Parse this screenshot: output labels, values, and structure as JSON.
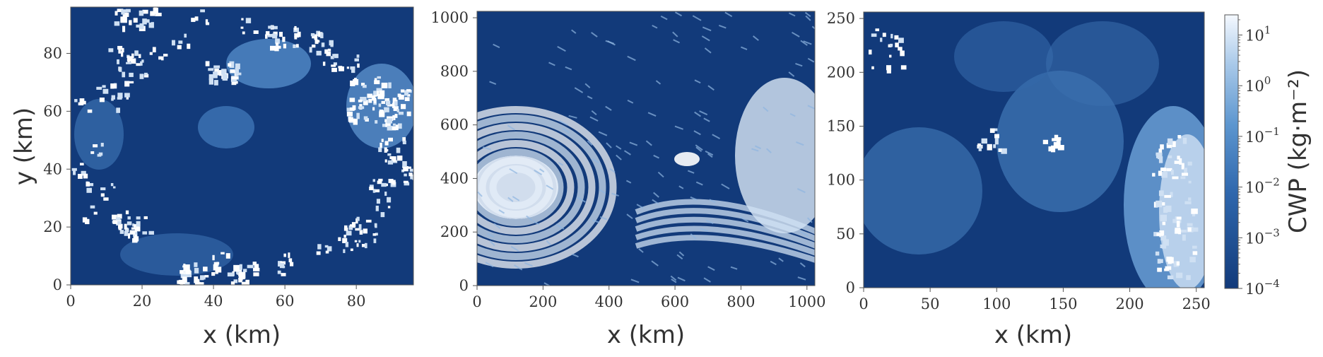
{
  "chart_data": [
    {
      "type": "heatmap",
      "xlabel": "x (km)",
      "ylabel": "y (km)",
      "xlim": [
        0,
        96
      ],
      "ylim": [
        0,
        96
      ],
      "xticks": [
        0,
        20,
        40,
        60,
        80
      ],
      "yticks": [
        0,
        20,
        40,
        60,
        80
      ],
      "grid": false,
      "value_range_log10": [
        -4,
        1.4
      ]
    },
    {
      "type": "heatmap",
      "xlabel": "x (km)",
      "ylabel": "",
      "xlim": [
        0,
        1024
      ],
      "ylim": [
        0,
        1024
      ],
      "xticks": [
        0,
        200,
        400,
        600,
        800,
        1000
      ],
      "yticks": [
        0,
        200,
        400,
        600,
        800,
        1000
      ],
      "grid": false,
      "value_range_log10": [
        -4,
        1.4
      ]
    },
    {
      "type": "heatmap",
      "xlabel": "x (km)",
      "ylabel": "",
      "xlim": [
        0,
        256
      ],
      "ylim": [
        0,
        256
      ],
      "xticks": [
        0,
        50,
        100,
        150,
        200,
        250
      ],
      "yticks": [
        0,
        50,
        100,
        150,
        200,
        250
      ],
      "grid": false,
      "value_range_log10": [
        -4,
        1.4
      ]
    }
  ],
  "colorbar": {
    "label": "CWP (kg·m⁻²)",
    "scale": "log",
    "range": [
      0.0001,
      25
    ],
    "ticks": [
      {
        "base": "10",
        "exp": "1",
        "value": 10
      },
      {
        "base": "10",
        "exp": "0",
        "value": 1
      },
      {
        "base": "10",
        "exp": "−1",
        "value": 0.1
      },
      {
        "base": "10",
        "exp": "−2",
        "value": 0.01
      },
      {
        "base": "10",
        "exp": "−3",
        "value": 0.001
      },
      {
        "base": "10",
        "exp": "−4",
        "value": 0.0001
      }
    ],
    "colors": {
      "low": "#123a7a",
      "mid": "#4a85c4",
      "high": "#f5f9ff"
    }
  }
}
